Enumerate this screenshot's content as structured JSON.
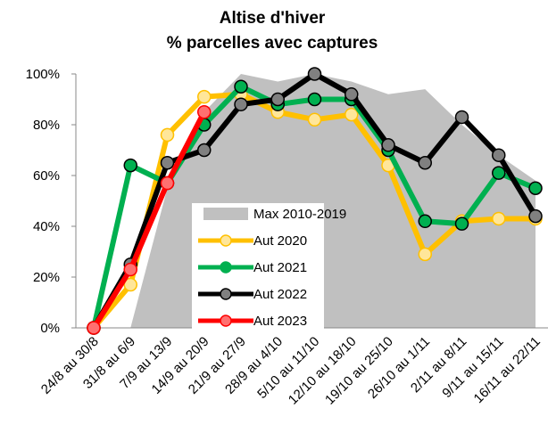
{
  "chart_data": {
    "type": "line",
    "title": "Altise d'hiver",
    "subtitle": "% parcelles avec captures",
    "categories": [
      "24/8 au 30/8",
      "31/8 au 6/9",
      "7/9 au 13/9",
      "14/9 au 20/9",
      "21/9 au 27/9",
      "28/9 au 4/10",
      "5/10 au 11/10",
      "12/10 au 18/10",
      "19/10 au 25/10",
      "26/10 au 1/11",
      "2/11 au 8/11",
      "9/11 au 15/11",
      "16/11 au 22/11"
    ],
    "ylim": [
      0,
      100
    ],
    "yticks": [
      {
        "value": 0,
        "label": "0%"
      },
      {
        "value": 20,
        "label": "20%"
      },
      {
        "value": 40,
        "label": "40%"
      },
      {
        "value": 60,
        "label": "60%"
      },
      {
        "value": 80,
        "label": "80%"
      },
      {
        "value": 100,
        "label": "100%"
      }
    ],
    "grid": false,
    "legend": "center",
    "series": [
      {
        "name": "Max 2010-2019",
        "type": "area",
        "color": "#c0c0c0",
        "values": [
          null,
          0,
          55,
          85,
          100,
          97,
          100,
          97,
          92,
          94,
          80,
          68,
          58
        ]
      },
      {
        "name": "Aut 2020",
        "color": "#ffc000",
        "marker_fill": "#ffe699",
        "values": [
          0,
          17,
          76,
          91,
          92,
          85,
          82,
          84,
          64,
          29,
          42,
          43,
          43
        ]
      },
      {
        "name": "Aut 2021",
        "color": "#00b050",
        "marker_fill": "#00b050",
        "values": [
          0,
          64,
          57,
          80,
          95,
          88,
          90,
          90,
          70,
          42,
          41,
          61,
          55
        ]
      },
      {
        "name": "Aut 2022",
        "color": "#000000",
        "marker_fill": "#808080",
        "values": [
          0,
          25,
          65,
          70,
          88,
          90,
          100,
          92,
          72,
          65,
          83,
          68,
          44
        ]
      },
      {
        "name": "Aut 2023",
        "color": "#ff0000",
        "marker_fill": "#ff7070",
        "values": [
          0,
          23,
          57,
          85,
          null,
          null,
          null,
          null,
          null,
          null,
          null,
          null,
          null
        ]
      }
    ]
  }
}
